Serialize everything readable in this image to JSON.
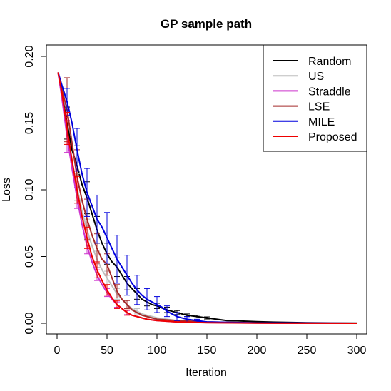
{
  "chart_data": {
    "type": "line",
    "title": "GP sample path",
    "xlabel": "Iteration",
    "ylabel": "Loss",
    "xlim": [
      0,
      300
    ],
    "ylim": [
      0,
      0.2
    ],
    "xticks": [
      0,
      50,
      100,
      150,
      200,
      250,
      300
    ],
    "xtick_labels": [
      "0",
      "50",
      "100",
      "150",
      "200",
      "250",
      "300"
    ],
    "yticks": [
      0,
      0.05,
      0.1,
      0.15,
      0.2
    ],
    "ytick_labels": [
      "0.00",
      "0.05",
      "0.10",
      "0.15",
      "0.20"
    ],
    "grid": false,
    "legend_position": "top-right",
    "series": [
      {
        "name": "Random",
        "color": "#000000",
        "points": [
          [
            1,
            0.188
          ],
          [
            5,
            0.172
          ],
          [
            10,
            0.15
          ],
          [
            15,
            0.13
          ],
          [
            20,
            0.118
          ],
          [
            25,
            0.104
          ],
          [
            30,
            0.094
          ],
          [
            35,
            0.082
          ],
          [
            40,
            0.07
          ],
          [
            45,
            0.06
          ],
          [
            50,
            0.052
          ],
          [
            55,
            0.046
          ],
          [
            60,
            0.042
          ],
          [
            65,
            0.036
          ],
          [
            70,
            0.03
          ],
          [
            75,
            0.026
          ],
          [
            80,
            0.022
          ],
          [
            85,
            0.018
          ],
          [
            90,
            0.016
          ],
          [
            95,
            0.014
          ],
          [
            100,
            0.013
          ],
          [
            110,
            0.01
          ],
          [
            120,
            0.008
          ],
          [
            130,
            0.006
          ],
          [
            140,
            0.005
          ],
          [
            150,
            0.004
          ],
          [
            160,
            0.003
          ],
          [
            170,
            0.002
          ],
          [
            180,
            0.0018
          ],
          [
            200,
            0.0012
          ],
          [
            220,
            0.0008
          ],
          [
            250,
            0.0004
          ],
          [
            300,
            0.0001
          ]
        ],
        "errors": [
          [
            10,
            0.15,
            0.012
          ],
          [
            20,
            0.118,
            0.015
          ],
          [
            30,
            0.094,
            0.012
          ],
          [
            40,
            0.07,
            0.01
          ],
          [
            50,
            0.052,
            0.008
          ],
          [
            60,
            0.042,
            0.007
          ],
          [
            70,
            0.03,
            0.005
          ],
          [
            80,
            0.022,
            0.004
          ],
          [
            90,
            0.016,
            0.003
          ],
          [
            100,
            0.013,
            0.002
          ],
          [
            110,
            0.01,
            0.002
          ],
          [
            120,
            0.008,
            0.0015
          ],
          [
            130,
            0.006,
            0.001
          ],
          [
            140,
            0.005,
            0.001
          ],
          [
            150,
            0.004,
            0.0008
          ]
        ]
      },
      {
        "name": "US",
        "color": "#bebebe",
        "points": [
          [
            1,
            0.188
          ],
          [
            5,
            0.17
          ],
          [
            10,
            0.144
          ],
          [
            15,
            0.122
          ],
          [
            20,
            0.102
          ],
          [
            25,
            0.084
          ],
          [
            30,
            0.07
          ],
          [
            35,
            0.058
          ],
          [
            40,
            0.048
          ],
          [
            45,
            0.04
          ],
          [
            50,
            0.034
          ],
          [
            55,
            0.028
          ],
          [
            60,
            0.022
          ],
          [
            65,
            0.018
          ],
          [
            70,
            0.014
          ],
          [
            75,
            0.011
          ],
          [
            80,
            0.009
          ],
          [
            85,
            0.007
          ],
          [
            90,
            0.006
          ],
          [
            95,
            0.005
          ],
          [
            100,
            0.004
          ],
          [
            110,
            0.003
          ],
          [
            120,
            0.002
          ],
          [
            140,
            0.001
          ],
          [
            160,
            0.0006
          ],
          [
            200,
            0.0002
          ],
          [
            300,
            0.0001
          ]
        ],
        "errors": [
          [
            10,
            0.144,
            0.01
          ],
          [
            20,
            0.102,
            0.01
          ],
          [
            30,
            0.07,
            0.008
          ],
          [
            40,
            0.048,
            0.006
          ],
          [
            50,
            0.034,
            0.005
          ],
          [
            60,
            0.022,
            0.004
          ],
          [
            70,
            0.014,
            0.003
          ],
          [
            80,
            0.009,
            0.002
          ]
        ]
      },
      {
        "name": "Straddle",
        "color": "#cc33cc",
        "points": [
          [
            1,
            0.188
          ],
          [
            5,
            0.168
          ],
          [
            10,
            0.14
          ],
          [
            15,
            0.116
          ],
          [
            20,
            0.094
          ],
          [
            25,
            0.074
          ],
          [
            30,
            0.058
          ],
          [
            35,
            0.046
          ],
          [
            40,
            0.036
          ],
          [
            45,
            0.029
          ],
          [
            50,
            0.023
          ],
          [
            55,
            0.018
          ],
          [
            60,
            0.014
          ],
          [
            65,
            0.011
          ],
          [
            70,
            0.008
          ],
          [
            75,
            0.006
          ],
          [
            80,
            0.005
          ],
          [
            85,
            0.004
          ],
          [
            90,
            0.003
          ],
          [
            100,
            0.002
          ],
          [
            120,
            0.001
          ],
          [
            150,
            0.0005
          ],
          [
            200,
            0.0001
          ],
          [
            300,
            0.0
          ]
        ],
        "errors": [
          [
            10,
            0.14,
            0.012
          ],
          [
            20,
            0.094,
            0.008
          ],
          [
            30,
            0.058,
            0.006
          ],
          [
            40,
            0.036,
            0.004
          ],
          [
            50,
            0.023,
            0.003
          ],
          [
            60,
            0.014,
            0.002
          ],
          [
            70,
            0.008,
            0.0015
          ]
        ]
      },
      {
        "name": "LSE",
        "color": "#a52a2a",
        "points": [
          [
            1,
            0.188
          ],
          [
            5,
            0.175
          ],
          [
            10,
            0.16
          ],
          [
            15,
            0.135
          ],
          [
            20,
            0.11
          ],
          [
            25,
            0.092
          ],
          [
            30,
            0.078
          ],
          [
            35,
            0.066
          ],
          [
            40,
            0.056
          ],
          [
            45,
            0.048
          ],
          [
            50,
            0.044
          ],
          [
            55,
            0.034
          ],
          [
            60,
            0.024
          ],
          [
            65,
            0.018
          ],
          [
            70,
            0.014
          ],
          [
            75,
            0.01
          ],
          [
            80,
            0.008
          ],
          [
            85,
            0.006
          ],
          [
            90,
            0.005
          ],
          [
            100,
            0.003
          ],
          [
            120,
            0.002
          ],
          [
            150,
            0.001
          ],
          [
            200,
            0.0003
          ],
          [
            300,
            0.0
          ]
        ],
        "errors": [
          [
            10,
            0.16,
            0.024
          ],
          [
            20,
            0.11,
            0.02
          ],
          [
            30,
            0.078,
            0.015
          ],
          [
            40,
            0.056,
            0.011
          ],
          [
            50,
            0.044,
            0.008
          ],
          [
            60,
            0.024,
            0.005
          ],
          [
            70,
            0.014,
            0.003
          ]
        ]
      },
      {
        "name": "MILE",
        "color": "#0000dd",
        "points": [
          [
            1,
            0.188
          ],
          [
            5,
            0.178
          ],
          [
            10,
            0.166
          ],
          [
            15,
            0.15
          ],
          [
            20,
            0.13
          ],
          [
            25,
            0.112
          ],
          [
            30,
            0.098
          ],
          [
            35,
            0.088
          ],
          [
            40,
            0.078
          ],
          [
            45,
            0.072
          ],
          [
            50,
            0.064
          ],
          [
            55,
            0.056
          ],
          [
            60,
            0.048
          ],
          [
            65,
            0.042
          ],
          [
            70,
            0.036
          ],
          [
            75,
            0.03
          ],
          [
            80,
            0.025
          ],
          [
            85,
            0.021
          ],
          [
            90,
            0.018
          ],
          [
            95,
            0.016
          ],
          [
            100,
            0.014
          ],
          [
            105,
            0.012
          ],
          [
            110,
            0.009
          ],
          [
            120,
            0.005
          ],
          [
            130,
            0.003
          ],
          [
            140,
            0.002
          ],
          [
            150,
            0.001
          ],
          [
            200,
            0.0003
          ],
          [
            300,
            0.0
          ]
        ],
        "errors": [
          [
            10,
            0.166,
            0.01
          ],
          [
            20,
            0.13,
            0.016
          ],
          [
            30,
            0.098,
            0.018
          ],
          [
            40,
            0.078,
            0.018
          ],
          [
            50,
            0.064,
            0.019
          ],
          [
            60,
            0.048,
            0.018
          ],
          [
            70,
            0.036,
            0.015
          ],
          [
            80,
            0.025,
            0.011
          ],
          [
            90,
            0.018,
            0.008
          ],
          [
            100,
            0.014,
            0.006
          ],
          [
            110,
            0.009,
            0.004
          ],
          [
            120,
            0.005,
            0.003
          ],
          [
            130,
            0.003,
            0.002
          ],
          [
            140,
            0.002,
            0.001
          ]
        ]
      },
      {
        "name": "Proposed",
        "color": "#ee0000",
        "points": [
          [
            1,
            0.188
          ],
          [
            5,
            0.172
          ],
          [
            10,
            0.146
          ],
          [
            15,
            0.122
          ],
          [
            20,
            0.1
          ],
          [
            25,
            0.08
          ],
          [
            30,
            0.064
          ],
          [
            35,
            0.05
          ],
          [
            40,
            0.04
          ],
          [
            45,
            0.032
          ],
          [
            50,
            0.025
          ],
          [
            55,
            0.019
          ],
          [
            60,
            0.014
          ],
          [
            65,
            0.011
          ],
          [
            70,
            0.008
          ],
          [
            75,
            0.006
          ],
          [
            80,
            0.005
          ],
          [
            85,
            0.004
          ],
          [
            90,
            0.003
          ],
          [
            100,
            0.002
          ],
          [
            120,
            0.001
          ],
          [
            150,
            0.0004
          ],
          [
            200,
            0.0001
          ],
          [
            300,
            0.0
          ]
        ],
        "errors": [
          [
            10,
            0.146,
            0.012
          ],
          [
            20,
            0.1,
            0.01
          ],
          [
            30,
            0.064,
            0.008
          ],
          [
            40,
            0.04,
            0.006
          ],
          [
            50,
            0.025,
            0.004
          ],
          [
            60,
            0.014,
            0.003
          ],
          [
            70,
            0.008,
            0.002
          ]
        ]
      }
    ]
  }
}
